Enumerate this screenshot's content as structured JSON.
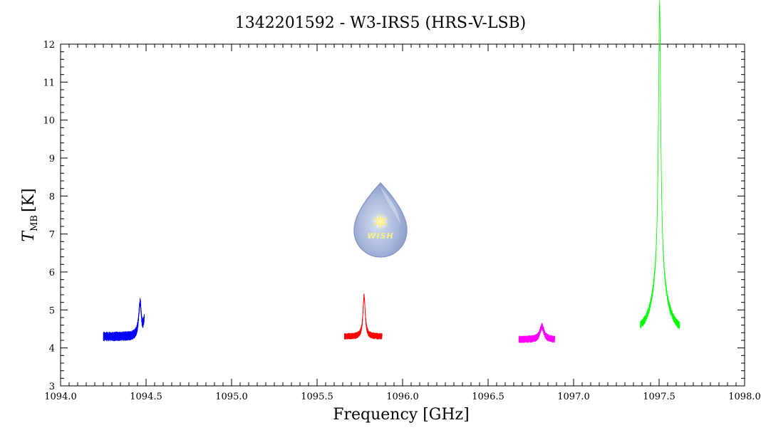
{
  "chart_data": {
    "type": "line",
    "title": "1342201592 - W3-IRS5 (HRS-V-LSB)",
    "xlabel": "Frequency [GHz]",
    "ylabel": {
      "main": "T",
      "sub": "MB",
      "unit": "[K]"
    },
    "xlim": [
      1094.0,
      1098.0
    ],
    "ylim": [
      3,
      12
    ],
    "xticks": [
      "1094.0",
      "1094.5",
      "1095.0",
      "1095.5",
      "1096.0",
      "1096.5",
      "1097.0",
      "1097.5",
      "1098.0"
    ],
    "yticks": [
      "3",
      "4",
      "5",
      "6",
      "7",
      "8",
      "9",
      "10",
      "11",
      "12"
    ],
    "grid": false,
    "legend": "none",
    "series": [
      {
        "color": "#0000ff",
        "x_range": [
          1094.25,
          1094.49
        ],
        "baseline": 4.3,
        "noise": 0.12,
        "peaks": [
          {
            "center": 1094.465,
            "amplitude": 0.9,
            "width": 0.01
          }
        ],
        "end_value": 4.8
      },
      {
        "color": "#ff0000",
        "x_range": [
          1095.66,
          1095.88
        ],
        "baseline": 4.3,
        "noise": 0.08,
        "peaks": [
          {
            "center": 1095.775,
            "amplitude": 1.05,
            "width": 0.008
          }
        ]
      },
      {
        "color": "#ff00ff",
        "x_range": [
          1096.68,
          1096.89
        ],
        "baseline": 4.22,
        "noise": 0.09,
        "peaks": [
          {
            "center": 1096.815,
            "amplitude": 0.35,
            "width": 0.014
          }
        ]
      },
      {
        "color": "#00ff00",
        "x_range": [
          1097.39,
          1097.62
        ],
        "baseline": 4.35,
        "noise": 0.1,
        "peaks": [
          {
            "center": 1097.503,
            "amplitude": 7.1,
            "width": 0.008
          },
          {
            "center": 1097.503,
            "amplitude": 1.6,
            "width": 0.045
          }
        ]
      }
    ]
  },
  "logo": {
    "text": "WISH",
    "icon": "star-icon",
    "shape": "water-drop"
  }
}
